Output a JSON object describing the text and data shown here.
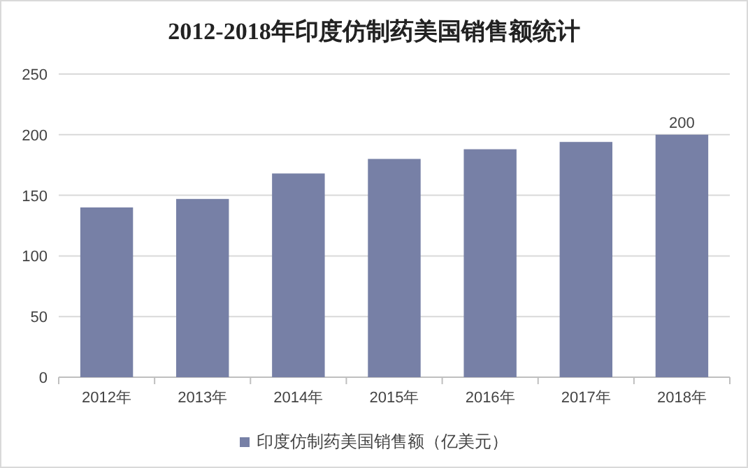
{
  "chart_data": {
    "type": "bar",
    "title": "2012-2018年印度仿制药美国销售额统计",
    "categories": [
      "2012年",
      "2013年",
      "2014年",
      "2015年",
      "2016年",
      "2017年",
      "2018年"
    ],
    "series": [
      {
        "name": "印度仿制药美国销售额（亿美元）",
        "color": "#7780a6",
        "values": [
          140,
          147,
          168,
          180,
          188,
          194,
          200
        ],
        "value_labels": [
          null,
          null,
          null,
          null,
          null,
          null,
          "200"
        ]
      }
    ],
    "ylim": [
      0,
      250
    ],
    "yticks": [
      0,
      50,
      100,
      150,
      200,
      250
    ],
    "grid": "y",
    "legend": "bottom"
  }
}
